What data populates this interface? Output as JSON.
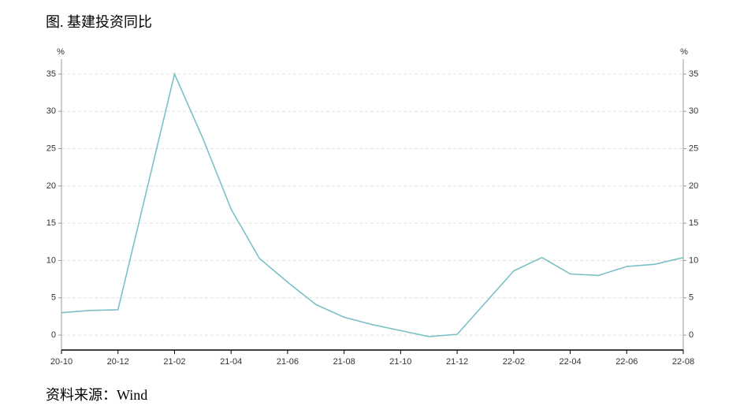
{
  "chart_data": {
    "type": "line",
    "title": "图. 基建投资同比",
    "source": "资料来源：Wind",
    "y_unit": "%",
    "x": [
      "20-10",
      "20-11",
      "20-12",
      "21-02",
      "21-03",
      "21-04",
      "21-05",
      "21-06",
      "21-07",
      "21-08",
      "21-09",
      "21-10",
      "21-11",
      "21-12",
      "22-02",
      "22-03",
      "22-04",
      "22-05",
      "22-06",
      "22-07",
      "22-08"
    ],
    "values": [
      3.0,
      3.3,
      3.4,
      35.0,
      26.4,
      16.9,
      10.3,
      7.1,
      4.1,
      2.4,
      1.4,
      0.6,
      -0.2,
      0.1,
      8.6,
      10.4,
      8.2,
      8.0,
      9.2,
      9.5,
      10.4
    ],
    "color": "#7cc0c7",
    "xticks": [
      "20-10",
      "20-12",
      "21-02",
      "21-04",
      "21-06",
      "21-08",
      "21-10",
      "21-12",
      "22-02",
      "22-04",
      "22-06",
      "22-08"
    ],
    "ylim": [
      -2,
      37
    ],
    "yticks": [
      0,
      5,
      10,
      15,
      20,
      25,
      30,
      35
    ],
    "grid": true
  }
}
